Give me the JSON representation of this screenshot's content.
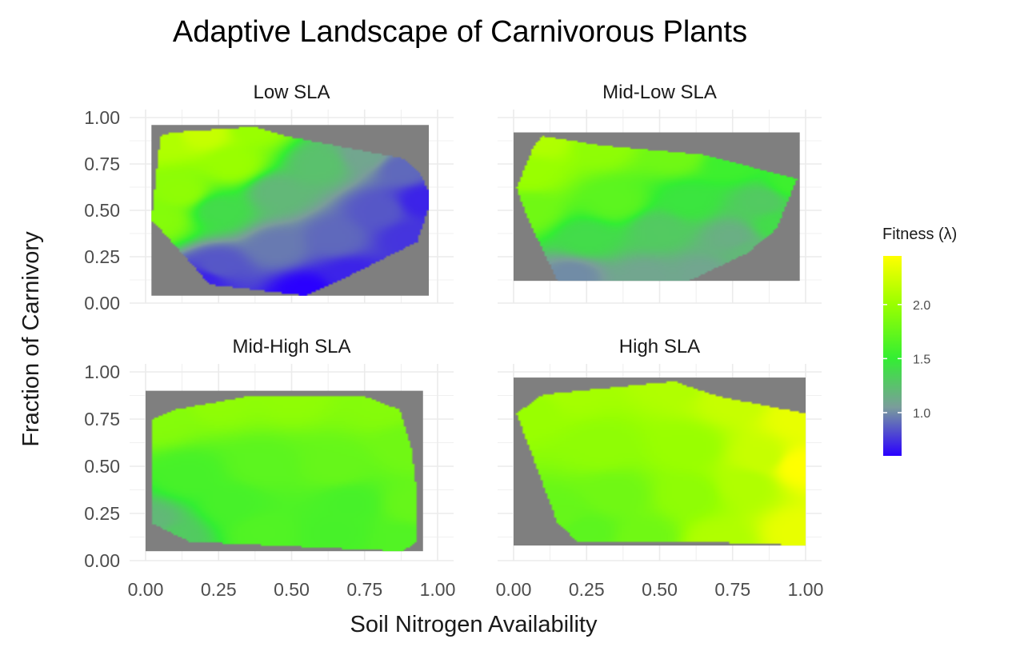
{
  "chart_data": {
    "type": "heatmap",
    "title": "Adaptive Landscape of Carnivorous Plants",
    "xlabel": "Soil Nitrogen Availability",
    "ylabel": "Fraction of Carnivory",
    "xlim": [
      0,
      1
    ],
    "ylim": [
      0,
      1
    ],
    "x_ticks": [
      "0.00",
      "0.25",
      "0.50",
      "0.75",
      "1.00"
    ],
    "y_ticks": [
      "0.00",
      "0.25",
      "0.50",
      "0.75",
      "1.00"
    ],
    "grid": true,
    "panel_background": "#7f7f7f",
    "legend": {
      "title": "Fitness (λ)",
      "placement": "right",
      "min": 0.6,
      "max": 2.45,
      "breaks": [
        1.0,
        1.5,
        2.0
      ],
      "break_labels": [
        "1.0",
        "1.5",
        "2.0"
      ],
      "colors": [
        {
          "value": 0.6,
          "color": "#2a00ff"
        },
        {
          "value": 1.05,
          "color": "#7a9d9b"
        },
        {
          "value": 1.5,
          "color": "#33ee33"
        },
        {
          "value": 2.0,
          "color": "#99ff00"
        },
        {
          "value": 2.45,
          "color": "#ffff00"
        }
      ]
    },
    "panels": [
      {
        "label": "Low SLA",
        "extent": {
          "x": [
            0.02,
            0.97
          ],
          "y": [
            0.04,
            0.96
          ]
        },
        "hull": [
          [
            0.05,
            0.9
          ],
          [
            0.09,
            0.92
          ],
          [
            0.37,
            0.95
          ],
          [
            0.48,
            0.9
          ],
          [
            0.88,
            0.78
          ],
          [
            0.94,
            0.7
          ],
          [
            0.97,
            0.6
          ],
          [
            0.97,
            0.52
          ],
          [
            0.93,
            0.33
          ],
          [
            0.7,
            0.15
          ],
          [
            0.55,
            0.04
          ],
          [
            0.22,
            0.1
          ],
          [
            0.05,
            0.4
          ],
          [
            0.02,
            0.44
          ]
        ],
        "points": [
          [
            0.05,
            0.88,
            2.1
          ],
          [
            0.2,
            0.92,
            2.2
          ],
          [
            0.37,
            0.95,
            2.0
          ],
          [
            0.3,
            0.75,
            2.0
          ],
          [
            0.12,
            0.6,
            1.95
          ],
          [
            0.05,
            0.45,
            1.9
          ],
          [
            0.25,
            0.5,
            1.4
          ],
          [
            0.45,
            0.6,
            1.2
          ],
          [
            0.6,
            0.75,
            1.25
          ],
          [
            0.75,
            0.8,
            1.1
          ],
          [
            0.88,
            0.72,
            0.9
          ],
          [
            0.95,
            0.55,
            0.7
          ],
          [
            0.8,
            0.5,
            0.85
          ],
          [
            0.65,
            0.35,
            0.9
          ],
          [
            0.45,
            0.3,
            0.95
          ],
          [
            0.25,
            0.2,
            0.85
          ],
          [
            0.2,
            0.12,
            0.7
          ],
          [
            0.55,
            0.06,
            0.6
          ],
          [
            0.9,
            0.35,
            0.75
          ],
          [
            0.7,
            0.15,
            0.7
          ]
        ]
      },
      {
        "label": "Mid-Low SLA",
        "extent": {
          "x": [
            0.0,
            0.98
          ],
          "y": [
            0.12,
            0.92
          ]
        },
        "hull": [
          [
            0.07,
            0.85
          ],
          [
            0.1,
            0.9
          ],
          [
            0.3,
            0.85
          ],
          [
            0.65,
            0.8
          ],
          [
            0.97,
            0.67
          ],
          [
            0.9,
            0.4
          ],
          [
            0.8,
            0.27
          ],
          [
            0.6,
            0.12
          ],
          [
            0.15,
            0.12
          ],
          [
            0.05,
            0.45
          ],
          [
            0.01,
            0.62
          ]
        ],
        "points": [
          [
            0.1,
            0.88,
            2.1
          ],
          [
            0.05,
            0.7,
            2.0
          ],
          [
            0.3,
            0.85,
            1.95
          ],
          [
            0.55,
            0.8,
            1.8
          ],
          [
            0.75,
            0.75,
            1.55
          ],
          [
            0.95,
            0.65,
            1.55
          ],
          [
            0.85,
            0.55,
            1.3
          ],
          [
            0.6,
            0.55,
            1.45
          ],
          [
            0.35,
            0.55,
            1.7
          ],
          [
            0.05,
            0.5,
            1.8
          ],
          [
            0.25,
            0.35,
            1.4
          ],
          [
            0.5,
            0.4,
            1.3
          ],
          [
            0.75,
            0.35,
            1.15
          ],
          [
            0.9,
            0.42,
            1.4
          ],
          [
            0.2,
            0.15,
            1.0
          ],
          [
            0.45,
            0.13,
            1.1
          ],
          [
            0.65,
            0.15,
            1.1
          ],
          [
            0.8,
            0.28,
            1.2
          ]
        ]
      },
      {
        "label": "Mid-High SLA",
        "extent": {
          "x": [
            0.0,
            0.95
          ],
          "y": [
            0.05,
            0.9
          ]
        },
        "hull": [
          [
            0.02,
            0.75
          ],
          [
            0.1,
            0.8
          ],
          [
            0.35,
            0.87
          ],
          [
            0.75,
            0.87
          ],
          [
            0.87,
            0.8
          ],
          [
            0.91,
            0.6
          ],
          [
            0.93,
            0.35
          ],
          [
            0.93,
            0.1
          ],
          [
            0.88,
            0.05
          ],
          [
            0.15,
            0.1
          ],
          [
            0.02,
            0.2
          ]
        ],
        "points": [
          [
            0.05,
            0.75,
            1.9
          ],
          [
            0.25,
            0.85,
            1.95
          ],
          [
            0.5,
            0.87,
            1.95
          ],
          [
            0.8,
            0.82,
            1.9
          ],
          [
            0.9,
            0.6,
            1.8
          ],
          [
            0.92,
            0.3,
            1.75
          ],
          [
            0.88,
            0.1,
            1.65
          ],
          [
            0.65,
            0.15,
            1.6
          ],
          [
            0.4,
            0.15,
            1.65
          ],
          [
            0.1,
            0.12,
            1.3
          ],
          [
            0.02,
            0.2,
            1.2
          ],
          [
            0.15,
            0.45,
            1.6
          ],
          [
            0.4,
            0.5,
            1.7
          ],
          [
            0.65,
            0.5,
            1.75
          ],
          [
            0.7,
            0.3,
            1.6
          ],
          [
            0.3,
            0.3,
            1.6
          ]
        ]
      },
      {
        "label": "High SLA",
        "extent": {
          "x": [
            0.0,
            1.0
          ],
          "y": [
            0.08,
            0.97
          ]
        },
        "hull": [
          [
            0.01,
            0.78
          ],
          [
            0.1,
            0.88
          ],
          [
            0.55,
            0.95
          ],
          [
            0.7,
            0.87
          ],
          [
            1.0,
            0.78
          ],
          [
            1.0,
            0.08
          ],
          [
            0.65,
            0.1
          ],
          [
            0.22,
            0.1
          ],
          [
            0.15,
            0.2
          ]
        ],
        "points": [
          [
            0.05,
            0.8,
            2.0
          ],
          [
            0.2,
            0.9,
            2.05
          ],
          [
            0.55,
            0.95,
            2.1
          ],
          [
            0.75,
            0.85,
            2.2
          ],
          [
            0.98,
            0.75,
            2.35
          ],
          [
            0.98,
            0.5,
            2.45
          ],
          [
            0.98,
            0.15,
            2.35
          ],
          [
            0.7,
            0.1,
            2.1
          ],
          [
            0.45,
            0.12,
            1.8
          ],
          [
            0.25,
            0.15,
            1.7
          ],
          [
            0.15,
            0.25,
            1.75
          ],
          [
            0.35,
            0.35,
            1.8
          ],
          [
            0.6,
            0.35,
            1.95
          ],
          [
            0.8,
            0.4,
            2.1
          ],
          [
            0.3,
            0.6,
            1.95
          ],
          [
            0.6,
            0.6,
            2.0
          ],
          [
            0.85,
            0.55,
            2.2
          ]
        ]
      }
    ]
  }
}
